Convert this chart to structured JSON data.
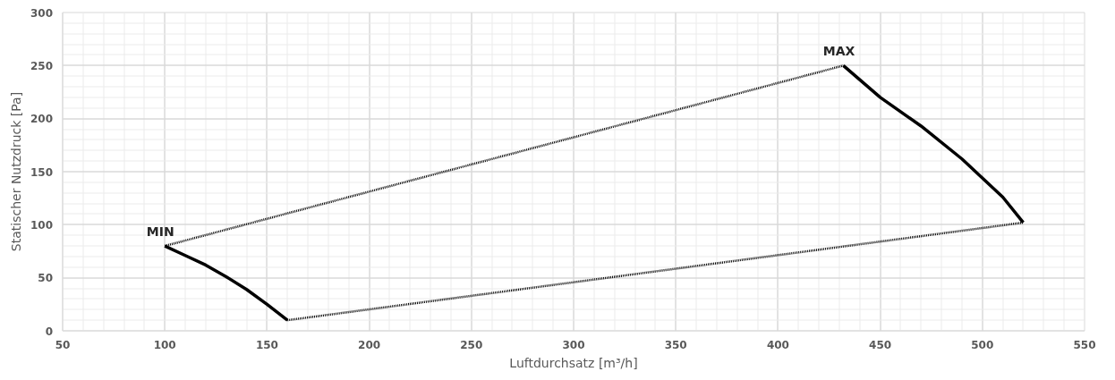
{
  "chart_data": {
    "type": "line",
    "xlabel": "Luftdurchsatz [m³/h]",
    "ylabel": "Statischer Nutzdruck [Pa]",
    "xlim": [
      50,
      550
    ],
    "ylim": [
      0,
      300
    ],
    "xticks": [
      50,
      100,
      150,
      200,
      250,
      300,
      350,
      400,
      450,
      500,
      550
    ],
    "yticks": [
      0,
      50,
      100,
      150,
      200,
      250,
      300
    ],
    "grid": true,
    "marker": "none",
    "series": [
      {
        "color": "#000000",
        "line_style": "solid",
        "x": [
          100,
          110,
          120,
          130,
          140,
          150,
          160
        ],
        "values": [
          80,
          71,
          62,
          51,
          39,
          25,
          10
        ]
      },
      {
        "color": "#000000",
        "line_style": "dotted",
        "x": [
          160,
          520
        ],
        "values": [
          10,
          102
        ]
      },
      {
        "color": "#000000",
        "line_style": "solid",
        "x": [
          432,
          450,
          470,
          490,
          510,
          520
        ],
        "values": [
          250,
          220,
          193,
          162,
          126,
          102
        ]
      },
      {
        "color": "#000000",
        "line_style": "dotted",
        "x": [
          100,
          432
        ],
        "values": [
          80,
          250
        ]
      }
    ],
    "annotations": [
      {
        "text": "MIN",
        "x": 100,
        "y": 80
      },
      {
        "text": "MAX",
        "x": 432,
        "y": 250
      }
    ]
  }
}
